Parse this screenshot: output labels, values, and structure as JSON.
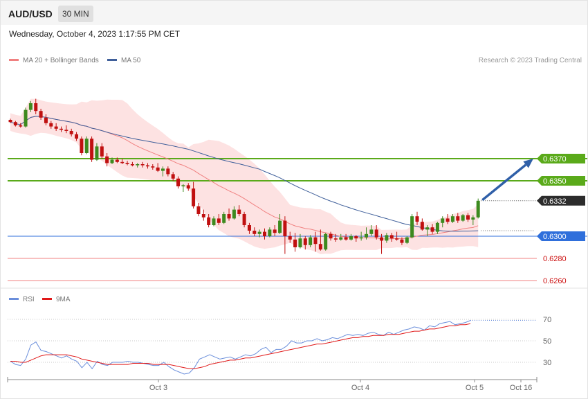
{
  "header": {
    "symbol": "AUD/USD",
    "timeframe": "30 MIN",
    "datetime": "Wednesday, October 4, 2023 1:17:55 PM CET"
  },
  "legend": {
    "ma20_label": "MA 20 + Bollinger Bands",
    "ma50_label": "MA 50",
    "credit": "Research © 2023 Trading Central",
    "rsi_label": "RSI",
    "rsi_ma_label": "9MA"
  },
  "colors": {
    "bull": "#3d8a1f",
    "bear": "#c01010",
    "ma20": "#f08080",
    "band_fill": "#fde2e2",
    "ma50": "#3f5f9a",
    "resistance": "#5aaa1a",
    "pivot": "#2f6fdb",
    "support": "#f08080",
    "support_text": "#cc1111",
    "arrow": "#2f5fa8",
    "rsi": "#6a8edb",
    "rsi_ma": "#e01818"
  },
  "chart_data": [
    {
      "type": "candlestick",
      "title": "AUD/USD",
      "timeframe": "30 MIN",
      "ylim": [
        0.6248,
        0.6407
      ],
      "x_ticks": [
        "Oct 3",
        "Oct 4",
        "Oct 5",
        "Oct 16"
      ],
      "levels": [
        {
          "label": "0.6370",
          "value": 0.637,
          "kind": "resistance"
        },
        {
          "label": "0.6350",
          "value": 0.635,
          "kind": "resistance"
        },
        {
          "label": "0.6332",
          "value": 0.6332,
          "kind": "current"
        },
        {
          "label": "0.6300",
          "value": 0.63,
          "kind": "pivot"
        },
        {
          "label": "0.6280",
          "value": 0.628,
          "kind": "support"
        },
        {
          "label": "0.6260",
          "value": 0.626,
          "kind": "support"
        }
      ],
      "forecast_arrow": {
        "from": 0.6332,
        "to": 0.637
      },
      "candles": [
        [
          0.6405,
          0.6406,
          0.6402,
          0.6403
        ],
        [
          0.6403,
          0.6404,
          0.6399,
          0.64
        ],
        [
          0.64,
          0.6402,
          0.6398,
          0.6399
        ],
        [
          0.6399,
          0.6416,
          0.6398,
          0.6414
        ],
        [
          0.6414,
          0.6422,
          0.6412,
          0.642
        ],
        [
          0.642,
          0.6424,
          0.641,
          0.6413
        ],
        [
          0.6413,
          0.6415,
          0.6405,
          0.6407
        ],
        [
          0.6407,
          0.641,
          0.64,
          0.6402
        ],
        [
          0.6402,
          0.6404,
          0.6397,
          0.6399
        ],
        [
          0.6399,
          0.6402,
          0.6395,
          0.6397
        ],
        [
          0.6397,
          0.6399,
          0.6394,
          0.6396
        ],
        [
          0.6396,
          0.64,
          0.6393,
          0.6395
        ],
        [
          0.6395,
          0.6397,
          0.639,
          0.6392
        ],
        [
          0.6392,
          0.6394,
          0.6386,
          0.6388
        ],
        [
          0.6388,
          0.639,
          0.6373,
          0.6375
        ],
        [
          0.6375,
          0.639,
          0.6374,
          0.6388
        ],
        [
          0.6388,
          0.639,
          0.6367,
          0.6369
        ],
        [
          0.6369,
          0.6384,
          0.6368,
          0.6381
        ],
        [
          0.6381,
          0.6384,
          0.637,
          0.6372
        ],
        [
          0.6372,
          0.6375,
          0.6363,
          0.6366
        ],
        [
          0.6366,
          0.6371,
          0.6365,
          0.6369
        ],
        [
          0.6369,
          0.6371,
          0.6366,
          0.6367
        ],
        [
          0.6367,
          0.637,
          0.6365,
          0.6366
        ],
        [
          0.6366,
          0.6368,
          0.6364,
          0.6365
        ],
        [
          0.6365,
          0.6367,
          0.6363,
          0.6364
        ],
        [
          0.6364,
          0.6366,
          0.6362,
          0.6365
        ],
        [
          0.6365,
          0.6367,
          0.6362,
          0.6364
        ],
        [
          0.6364,
          0.6366,
          0.6361,
          0.6363
        ],
        [
          0.6363,
          0.6365,
          0.636,
          0.6362
        ],
        [
          0.6362,
          0.6366,
          0.6358,
          0.6359
        ],
        [
          0.6359,
          0.6363,
          0.6354,
          0.6361
        ],
        [
          0.6361,
          0.6363,
          0.6354,
          0.6356
        ],
        [
          0.6356,
          0.6358,
          0.635,
          0.6352
        ],
        [
          0.6352,
          0.6354,
          0.6343,
          0.6345
        ],
        [
          0.6345,
          0.6347,
          0.634,
          0.6346
        ],
        [
          0.6346,
          0.6348,
          0.6341,
          0.6343
        ],
        [
          0.6343,
          0.6349,
          0.6325,
          0.6327
        ],
        [
          0.6327,
          0.633,
          0.6318,
          0.632
        ],
        [
          0.632,
          0.6324,
          0.6314,
          0.6317
        ],
        [
          0.6317,
          0.632,
          0.6308,
          0.631
        ],
        [
          0.631,
          0.6318,
          0.6309,
          0.6316
        ],
        [
          0.6316,
          0.632,
          0.631,
          0.6312
        ],
        [
          0.6312,
          0.6322,
          0.6311,
          0.632
        ],
        [
          0.632,
          0.6325,
          0.6314,
          0.6316
        ],
        [
          0.6316,
          0.6327,
          0.6315,
          0.6324
        ],
        [
          0.6324,
          0.6328,
          0.6318,
          0.632
        ],
        [
          0.632,
          0.6322,
          0.6308,
          0.631
        ],
        [
          0.631,
          0.6312,
          0.6302,
          0.6305
        ],
        [
          0.6305,
          0.6308,
          0.63,
          0.6302
        ],
        [
          0.6302,
          0.6306,
          0.6299,
          0.6304
        ],
        [
          0.6304,
          0.6307,
          0.6297,
          0.63
        ],
        [
          0.63,
          0.6308,
          0.6299,
          0.6306
        ],
        [
          0.6306,
          0.631,
          0.63,
          0.6303
        ],
        [
          0.6303,
          0.632,
          0.6302,
          0.6314
        ],
        [
          0.6314,
          0.6318,
          0.6284,
          0.63
        ],
        [
          0.63,
          0.6304,
          0.6294,
          0.6297
        ],
        [
          0.6297,
          0.6303,
          0.6286,
          0.629
        ],
        [
          0.629,
          0.6302,
          0.6289,
          0.6298
        ],
        [
          0.6298,
          0.63,
          0.6288,
          0.6292
        ],
        [
          0.6292,
          0.6301,
          0.629,
          0.6299
        ],
        [
          0.6299,
          0.6304,
          0.6286,
          0.6293
        ],
        [
          0.6293,
          0.6306,
          0.6287,
          0.6288
        ],
        [
          0.6288,
          0.6303,
          0.6287,
          0.6302
        ],
        [
          0.6302,
          0.6304,
          0.6296,
          0.6298
        ],
        [
          0.6298,
          0.6302,
          0.6295,
          0.6297
        ],
        [
          0.6297,
          0.6302,
          0.6296,
          0.6299
        ],
        [
          0.6299,
          0.6302,
          0.6296,
          0.6297
        ],
        [
          0.6297,
          0.6302,
          0.6296,
          0.63
        ],
        [
          0.63,
          0.6301,
          0.6295,
          0.6298
        ],
        [
          0.6298,
          0.6304,
          0.6296,
          0.6299
        ],
        [
          0.6299,
          0.6308,
          0.6297,
          0.6302
        ],
        [
          0.6302,
          0.631,
          0.63,
          0.6306
        ],
        [
          0.6306,
          0.631,
          0.6297,
          0.6299
        ],
        [
          0.6299,
          0.6302,
          0.6284,
          0.6296
        ],
        [
          0.6296,
          0.6303,
          0.6294,
          0.6301
        ],
        [
          0.6301,
          0.6303,
          0.6295,
          0.6298
        ],
        [
          0.6298,
          0.6304,
          0.6296,
          0.6297
        ],
        [
          0.6297,
          0.6299,
          0.6292,
          0.6294
        ],
        [
          0.6294,
          0.63,
          0.6293,
          0.6299
        ],
        [
          0.6299,
          0.632,
          0.6298,
          0.6318
        ],
        [
          0.6318,
          0.6322,
          0.631,
          0.6313
        ],
        [
          0.6313,
          0.6316,
          0.6305,
          0.6306
        ],
        [
          0.6306,
          0.631,
          0.63,
          0.6308
        ],
        [
          0.6308,
          0.6311,
          0.6302,
          0.6304
        ],
        [
          0.6304,
          0.6313,
          0.6302,
          0.6312
        ],
        [
          0.6312,
          0.6318,
          0.6308,
          0.6316
        ],
        [
          0.6316,
          0.632,
          0.6311,
          0.6313
        ],
        [
          0.6313,
          0.632,
          0.6312,
          0.6318
        ],
        [
          0.6318,
          0.6321,
          0.6312,
          0.6314
        ],
        [
          0.6314,
          0.632,
          0.6313,
          0.6319
        ],
        [
          0.6319,
          0.6321,
          0.6313,
          0.6315
        ],
        [
          0.6315,
          0.6319,
          0.631,
          0.6317
        ],
        [
          0.6317,
          0.6334,
          0.6316,
          0.6332
        ]
      ]
    },
    {
      "type": "line",
      "title": "RSI",
      "ylim": [
        15,
        85
      ],
      "y_ticks": [
        30,
        50,
        70
      ],
      "series": [
        {
          "name": "RSI"
        },
        {
          "name": "9MA"
        }
      ],
      "rsi": [
        31,
        28,
        27,
        33,
        46,
        49,
        41,
        40,
        38,
        36,
        34,
        36,
        33,
        31,
        25,
        30,
        24,
        31,
        28,
        27,
        30,
        30,
        30,
        31,
        30,
        30,
        29,
        28,
        27,
        27,
        30,
        26,
        23,
        21,
        19,
        20,
        25,
        33,
        35,
        37,
        35,
        33,
        34,
        35,
        33,
        35,
        37,
        36,
        38,
        42,
        44,
        39,
        42,
        42,
        45,
        50,
        48,
        48,
        50,
        50,
        52,
        50,
        51,
        53,
        52,
        54,
        56,
        55,
        56,
        55,
        57,
        58,
        56,
        55,
        58,
        56,
        58,
        60,
        61,
        63,
        62,
        60,
        64,
        63,
        66,
        67,
        68,
        65,
        66,
        67,
        69
      ],
      "rsi_ma": [
        31,
        31,
        30,
        30,
        32,
        34,
        36,
        37,
        37,
        37,
        37,
        37,
        36,
        35,
        33,
        32,
        31,
        30,
        29,
        28,
        28,
        28,
        28,
        28,
        29,
        29,
        29,
        29,
        28,
        28,
        28,
        28,
        27,
        26,
        25,
        24,
        24,
        25,
        26,
        28,
        29,
        30,
        31,
        32,
        32,
        33,
        34,
        34,
        35,
        36,
        37,
        38,
        39,
        40,
        41,
        42,
        43,
        44,
        45,
        46,
        47,
        47,
        48,
        49,
        50,
        51,
        52,
        53,
        53,
        54,
        54,
        55,
        55,
        55,
        56,
        56,
        56,
        57,
        58,
        59,
        59,
        60,
        61,
        61,
        62,
        63,
        64,
        64,
        65,
        65,
        66
      ]
    }
  ]
}
